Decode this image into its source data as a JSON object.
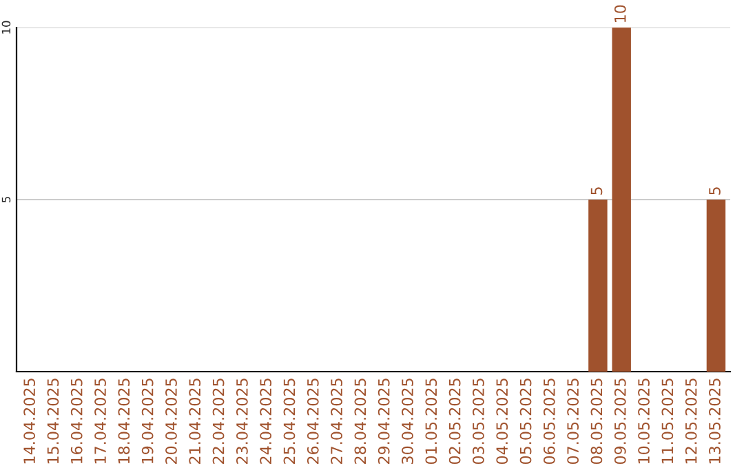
{
  "chart_data": {
    "type": "bar",
    "categories": [
      "14.04.2025",
      "15.04.2025",
      "16.04.2025",
      "17.04.2025",
      "18.04.2025",
      "19.04.2025",
      "20.04.2025",
      "21.04.2025",
      "22.04.2025",
      "23.04.2025",
      "24.04.2025",
      "25.04.2025",
      "26.04.2025",
      "27.04.2025",
      "28.04.2025",
      "29.04.2025",
      "30.04.2025",
      "01.05.2025",
      "02.05.2025",
      "03.05.2025",
      "04.05.2025",
      "05.05.2025",
      "06.05.2025",
      "07.05.2025",
      "08.05.2025",
      "09.05.2025",
      "10.05.2025",
      "11.05.2025",
      "12.05.2025",
      "13.05.2025"
    ],
    "values": [
      0,
      0,
      0,
      0,
      0,
      0,
      0,
      0,
      0,
      0,
      0,
      0,
      0,
      0,
      0,
      0,
      0,
      0,
      0,
      0,
      0,
      0,
      0,
      0,
      5,
      10,
      0,
      0,
      0,
      5
    ],
    "value_labels": [
      null,
      null,
      null,
      null,
      null,
      null,
      null,
      null,
      null,
      null,
      null,
      null,
      null,
      null,
      null,
      null,
      null,
      null,
      null,
      null,
      null,
      null,
      null,
      null,
      "5",
      "10",
      null,
      null,
      null,
      "5"
    ],
    "color": "#a0522d",
    "ylim": [
      0,
      10
    ],
    "yticks": [
      5,
      10
    ],
    "grid": "y"
  }
}
